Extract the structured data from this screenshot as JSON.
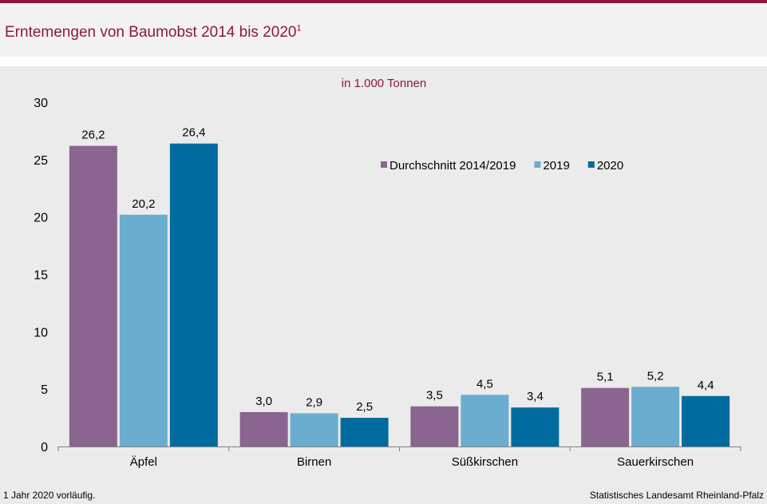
{
  "header": {
    "title": "Erntemengen von Baumobst 2014 bis 2020",
    "title_superscript": "1"
  },
  "footer": {
    "footnote": "1 Jahr 2020 vorläufig.",
    "source": "Statistisches Landesamt Rheinland-Pfalz"
  },
  "colors": {
    "accent": "#8b1a3a",
    "series": [
      "#8a6590",
      "#6aadcf",
      "#006b9e"
    ]
  },
  "chart_data": {
    "type": "bar",
    "unit_label": "in 1.000 Tonnen",
    "categories": [
      "Äpfel",
      "Birnen",
      "Süßkirschen",
      "Sauerkirschen"
    ],
    "series": [
      {
        "name": "Durchschnitt 2014/2019",
        "values": [
          26.2,
          3.0,
          3.5,
          5.1
        ],
        "labels": [
          "26,2",
          "3,0",
          "3,5",
          "5,1"
        ]
      },
      {
        "name": "2019",
        "values": [
          20.2,
          2.9,
          4.5,
          5.2
        ],
        "labels": [
          "20,2",
          "2,9",
          "4,5",
          "5,2"
        ]
      },
      {
        "name": "2020",
        "values": [
          26.4,
          2.5,
          3.4,
          4.4
        ],
        "labels": [
          "26,4",
          "2,5",
          "3,4",
          "4,4"
        ]
      }
    ],
    "ylim": [
      0,
      30
    ],
    "yticks": [
      0,
      5,
      10,
      15,
      20,
      25,
      30
    ],
    "grid": false,
    "legend_position": "top-right"
  }
}
